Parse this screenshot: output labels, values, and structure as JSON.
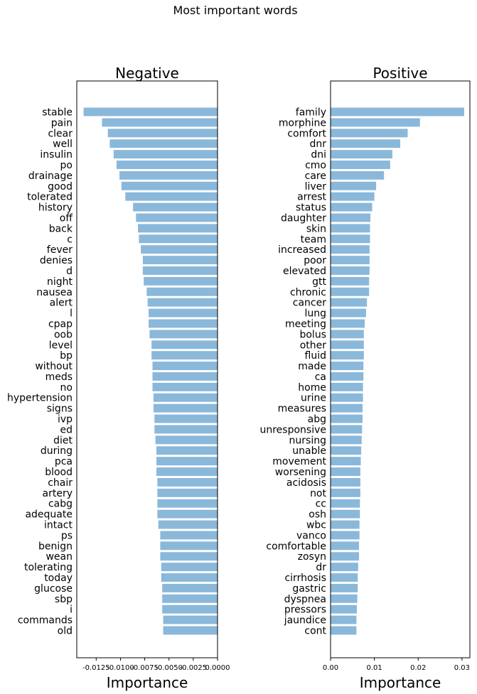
{
  "chart_data": {
    "type": "bar",
    "orientation": "horizontal",
    "title": "Most important words",
    "bar_color": "#8ab8da",
    "panels": [
      {
        "title": "Negative",
        "xlabel": "Importance",
        "xlim": [
          -0.0145,
          0.0
        ],
        "xticks": [
          -0.0125,
          -0.01,
          -0.0075,
          -0.005,
          -0.0025,
          0.0
        ],
        "xtick_labels": [
          "-0.0125",
          "-0.0100",
          "-0.0075",
          "-0.0050",
          "-0.0025",
          "0.0000"
        ],
        "categories": [
          "stable",
          "pain",
          "clear",
          "well",
          "insulin",
          "po",
          "drainage",
          "good",
          "tolerated",
          "history",
          "off",
          "back",
          "c",
          "fever",
          "denies",
          "d",
          "night",
          "nausea",
          "alert",
          "l",
          "cpap",
          "oob",
          "level",
          "bp",
          "without",
          "meds",
          "no",
          "hypertension",
          "signs",
          "ivp",
          "ed",
          "diet",
          "during",
          "pca",
          "blood",
          "chair",
          "artery",
          "cabg",
          "adequate",
          "intact",
          "ps",
          "benign",
          "wean",
          "tolerating",
          "today",
          "glucose",
          "sbp",
          "i",
          "commands",
          "old"
        ],
        "values": [
          -0.0138,
          -0.0119,
          -0.0113,
          -0.0111,
          -0.0107,
          -0.0104,
          -0.0101,
          -0.0099,
          -0.0095,
          -0.0087,
          -0.0084,
          -0.0082,
          -0.0081,
          -0.0079,
          -0.0077,
          -0.0077,
          -0.0076,
          -0.0073,
          -0.0072,
          -0.0071,
          -0.0071,
          -0.007,
          -0.0068,
          -0.0068,
          -0.0067,
          -0.0067,
          -0.0067,
          -0.0066,
          -0.0066,
          -0.0065,
          -0.0065,
          -0.0064,
          -0.0063,
          -0.0063,
          -0.0063,
          -0.0062,
          -0.0062,
          -0.0062,
          -0.0062,
          -0.0061,
          -0.0059,
          -0.0059,
          -0.0059,
          -0.0058,
          -0.0058,
          -0.0057,
          -0.0057,
          -0.0057,
          -0.0056,
          -0.0056
        ]
      },
      {
        "title": "Positive",
        "xlabel": "Importance",
        "xlim": [
          0.0,
          0.0318
        ],
        "xticks": [
          0.0,
          0.01,
          0.02,
          0.03
        ],
        "xtick_labels": [
          "0.00",
          "0.01",
          "0.02",
          "0.03"
        ],
        "categories": [
          "family",
          "morphine",
          "comfort",
          "dnr",
          "dni",
          "cmo",
          "care",
          "liver",
          "arrest",
          "status",
          "daughter",
          "skin",
          "team",
          "increased",
          "poor",
          "elevated",
          "gtt",
          "chronic",
          "cancer",
          "lung",
          "meeting",
          "bolus",
          "other",
          "fluid",
          "made",
          "ca",
          "home",
          "urine",
          "measures",
          "abg",
          "unresponsive",
          "nursing",
          "unable",
          "movement",
          "worsening",
          "acidosis",
          "not",
          "cc",
          "osh",
          "wbc",
          "vanco",
          "comfortable",
          "zosyn",
          "dr",
          "cirrhosis",
          "gastric",
          "dyspnea",
          "pressors",
          "jaundice",
          "cont"
        ],
        "values": [
          0.0305,
          0.0204,
          0.0176,
          0.0159,
          0.0141,
          0.0136,
          0.0122,
          0.0104,
          0.01,
          0.0095,
          0.0091,
          0.009,
          0.009,
          0.0089,
          0.0089,
          0.0089,
          0.0088,
          0.0088,
          0.0083,
          0.0081,
          0.0078,
          0.0076,
          0.0076,
          0.0076,
          0.0075,
          0.0075,
          0.0074,
          0.0074,
          0.0073,
          0.0073,
          0.0072,
          0.0071,
          0.007,
          0.0069,
          0.0068,
          0.0068,
          0.0068,
          0.0067,
          0.0067,
          0.0066,
          0.0066,
          0.0065,
          0.0065,
          0.0063,
          0.0062,
          0.0062,
          0.0061,
          0.006,
          0.0059,
          0.0059
        ]
      }
    ]
  }
}
